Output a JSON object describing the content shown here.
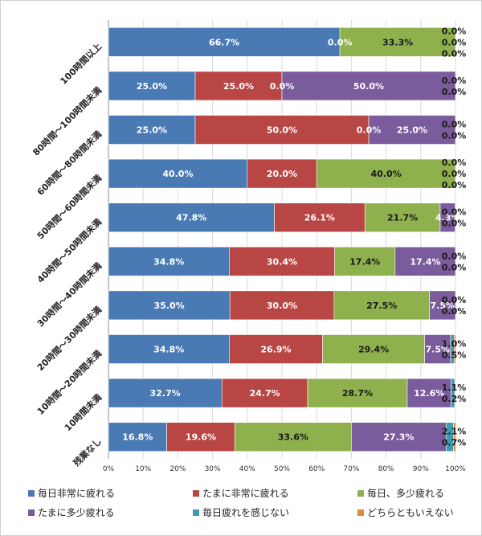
{
  "chart_data": {
    "type": "bar",
    "orientation": "horizontal",
    "stacked": true,
    "percent_stacked": true,
    "title": "",
    "xlabel": "",
    "ylabel": "",
    "xlim": [
      0,
      100
    ],
    "x_tick_labels": [
      "0%",
      "10%",
      "20%",
      "30%",
      "40%",
      "50%",
      "60%",
      "70%",
      "80%",
      "90%",
      "100%"
    ],
    "grid": true,
    "legend_position": "bottom",
    "categories": [
      "100時間以上",
      "80時間〜100時間未満",
      "60時間〜80時間未満",
      "50時間〜60時間未満",
      "40時間〜50時間未満",
      "30時間〜40時間未満",
      "20時間〜30時間未満",
      "10時間〜20時間未満",
      "10時間未満",
      "残業なし"
    ],
    "series": [
      {
        "name": "毎日非常に疲れる",
        "color": "#4a7ab4",
        "values": [
          66.7,
          25.0,
          25.0,
          40.0,
          47.8,
          34.8,
          35.0,
          34.8,
          32.7,
          16.8
        ]
      },
      {
        "name": "たまに非常に疲れる",
        "color": "#b84644",
        "values": [
          0.0,
          25.0,
          50.0,
          20.0,
          26.1,
          30.4,
          30.0,
          26.9,
          24.7,
          19.6
        ]
      },
      {
        "name": "毎日、多少疲れる",
        "color": "#8eb04d",
        "values": [
          33.3,
          0.0,
          0.0,
          40.0,
          21.7,
          17.4,
          27.5,
          29.4,
          28.7,
          33.6
        ]
      },
      {
        "name": "たまに多少疲れる",
        "color": "#7a5b9c",
        "values": [
          0.0,
          50.0,
          25.0,
          0.0,
          4.3,
          17.4,
          7.5,
          7.5,
          12.6,
          27.3
        ]
      },
      {
        "name": "毎日疲れを感じない",
        "color": "#3c9bb0",
        "values": [
          0.0,
          0.0,
          0.0,
          0.0,
          0.0,
          0.0,
          0.0,
          1.0,
          1.1,
          2.1
        ]
      },
      {
        "name": "どちらともいえない",
        "color": "#e48b3e",
        "values": [
          0.0,
          0.0,
          0.0,
          0.0,
          0.0,
          0.0,
          0.0,
          0.5,
          0.2,
          0.7
        ]
      }
    ],
    "data_labels": [
      [
        "66.7%",
        "0.0%",
        "33.3%",
        "0.0%",
        "0.0%",
        "0.0%"
      ],
      [
        "25.0%",
        "25.0%",
        "0.0%",
        "50.0%",
        "0.0%",
        "0.0%"
      ],
      [
        "25.0%",
        "50.0%",
        "0.0%",
        "25.0%",
        "0.0%",
        "0.0%"
      ],
      [
        "40.0%",
        "20.0%",
        "40.0%",
        "0.0%",
        "0.0%",
        "0.0%"
      ],
      [
        "47.8%",
        "26.1%",
        "21.7%",
        "4.3%",
        "0.0%",
        "0.0%"
      ],
      [
        "34.8%",
        "30.4%",
        "17.4%",
        "17.4%",
        "0.0%",
        "0.0%"
      ],
      [
        "35.0%",
        "30.0%",
        "27.5%",
        "7.5%",
        "0.0%",
        "0.0%"
      ],
      [
        "34.8%",
        "26.9%",
        "29.4%",
        "7.5%",
        "1.0%",
        "0.5%"
      ],
      [
        "32.7%",
        "24.7%",
        "28.7%",
        "12.6%",
        "1.1%",
        "0.2%"
      ],
      [
        "16.8%",
        "19.6%",
        "33.6%",
        "27.3%",
        "2.1%",
        "0.7%"
      ]
    ]
  }
}
